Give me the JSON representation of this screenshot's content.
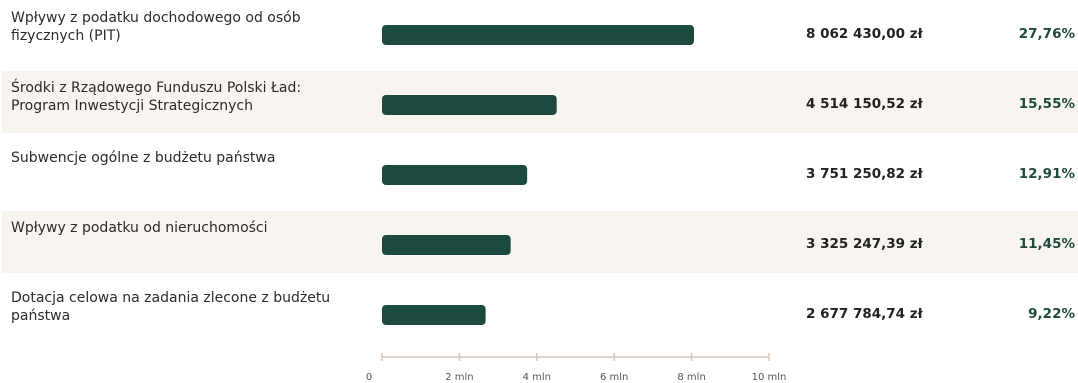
{
  "colors": {
    "bar": "#1c4a3e",
    "row_shade": "#f8f4ef",
    "axis": "#d8c8bb",
    "percent_text": "#1f4a3e"
  },
  "chart_data": {
    "type": "bar",
    "orientation": "horizontal",
    "categories": [
      "Wpływy z podatku dochodowego od osób fizycznych (PIT)",
      "Środki z Rządowego Funduszu Polski Ład: Program Inwestycji Strategicznych",
      "Subwencje ogólne z budżetu państwa",
      "Wpływy z podatku od nieruchomości",
      "Dotacja celowa na zadania zlecone z budżetu państwa"
    ],
    "values": [
      8062430.0,
      4514150.52,
      3751250.82,
      3325247.39,
      2677784.74
    ],
    "value_labels": [
      "8 062 430,00 zł",
      "4 514 150,52 zł",
      "3 751 250,82 zł",
      "3 325 247,39 zł",
      "2 677 784,74 zł"
    ],
    "percent_labels": [
      "27,76%",
      "15,55%",
      "12,91%",
      "11,45%",
      "9,22%"
    ],
    "xlim": [
      0,
      10000000
    ],
    "x_ticks": [
      0,
      2000000,
      4000000,
      6000000,
      8000000,
      10000000
    ],
    "x_tick_labels": [
      "0",
      "2 mln",
      "4 mln",
      "6 mln",
      "8 mln",
      "10 mln"
    ],
    "grid": false,
    "title": "",
    "xlabel": "",
    "ylabel": ""
  }
}
